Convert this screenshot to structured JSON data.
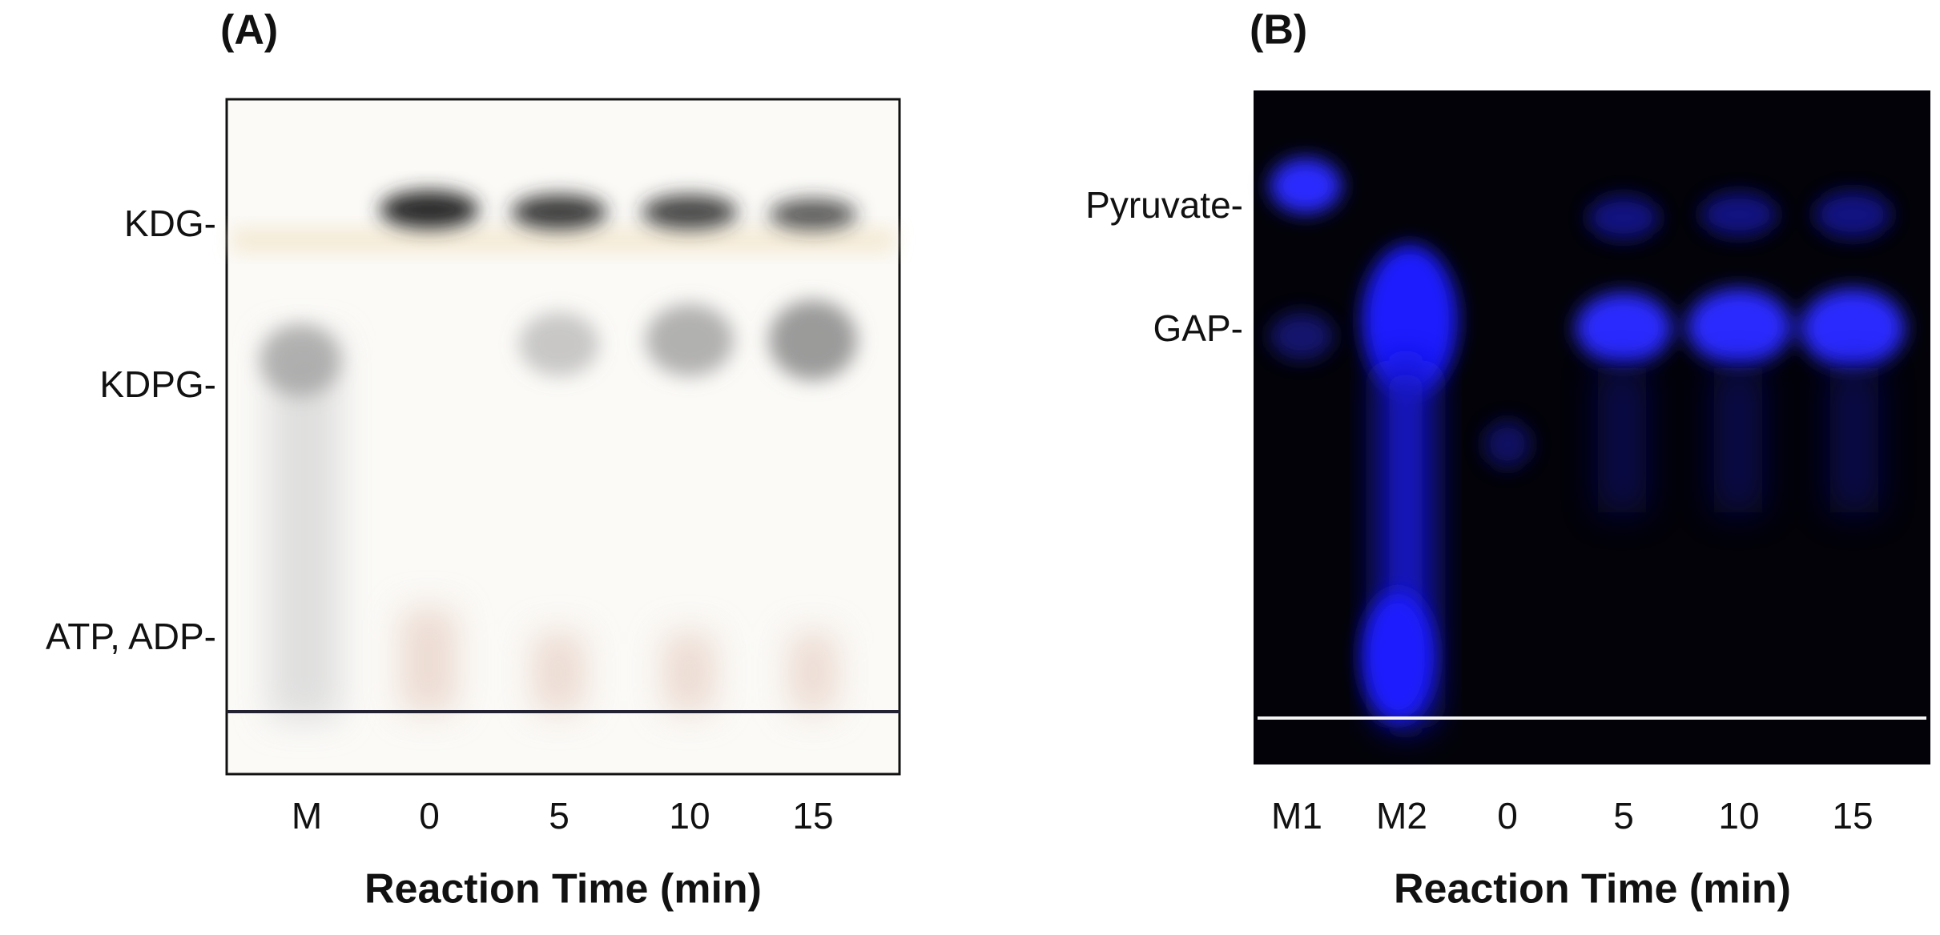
{
  "panels": [
    {
      "label": "(A)",
      "row_labels": [
        "KDG-",
        "KDPG-",
        "ATP, ADP-"
      ],
      "lane_labels": [
        "M",
        "0",
        "5",
        "10",
        "15"
      ],
      "x_title": "Reaction Time (min)"
    },
    {
      "label": "(B)",
      "row_labels": [
        "Pyruvate-",
        "GAP-"
      ],
      "lane_labels": [
        "M1",
        "M2",
        "0",
        "5",
        "10",
        "15"
      ],
      "x_title": "Reaction Time (min)"
    }
  ]
}
